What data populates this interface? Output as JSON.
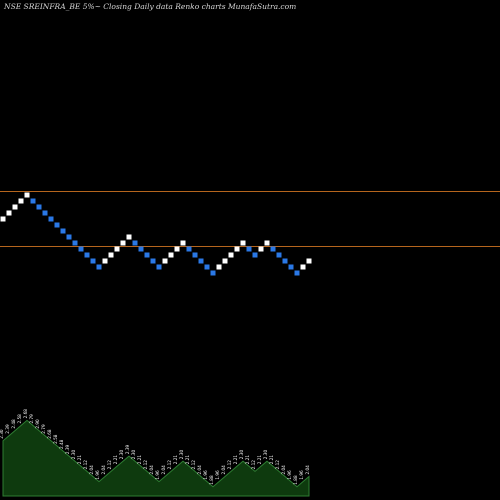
{
  "chart_data": {
    "type": "renko",
    "title": "NSE SREINFRA_BE 5%~  Closing Daily data  Renko  charts MunafaSutra.com",
    "colors": {
      "background": "#000000",
      "up_brick": "#ffffff",
      "down_brick": "#2a78e6",
      "reference_line": "#b5651d",
      "volume_fill": "#0e3a0e",
      "volume_outline": "#2e7d32",
      "label_text": "#ffffff"
    },
    "directions": [
      "U",
      "U",
      "U",
      "U",
      "U",
      "D",
      "D",
      "D",
      "D",
      "D",
      "D",
      "D",
      "D",
      "D",
      "D",
      "D",
      "D",
      "U",
      "U",
      "U",
      "U",
      "U",
      "D",
      "D",
      "D",
      "D",
      "D",
      "U",
      "U",
      "U",
      "U",
      "D",
      "D",
      "D",
      "D",
      "D",
      "U",
      "U",
      "U",
      "U",
      "U",
      "D",
      "D",
      "U",
      "U",
      "D",
      "D",
      "D",
      "D",
      "D",
      "U",
      "U"
    ],
    "volume_labels": [
      "2.30",
      "2.39",
      "2.48",
      "2.58",
      "2.68",
      "2.79",
      "2.90",
      "2.79",
      "2.68",
      "2.58",
      "2.48",
      "2.39",
      "2.30",
      "2.21",
      "2.12",
      "2.04",
      "1.96",
      "2.04",
      "2.12",
      "2.21",
      "2.30",
      "2.39",
      "2.30",
      "2.21",
      "2.12",
      "2.04",
      "1.96",
      "2.04",
      "2.12",
      "2.21",
      "2.30",
      "2.21",
      "2.12",
      "2.04",
      "1.96",
      "1.88",
      "1.96",
      "2.04",
      "2.12",
      "2.21",
      "2.30",
      "2.21",
      "2.12",
      "2.21",
      "2.30",
      "2.21",
      "2.12",
      "2.04",
      "1.96",
      "1.88",
      "1.96",
      "2.04"
    ]
  }
}
